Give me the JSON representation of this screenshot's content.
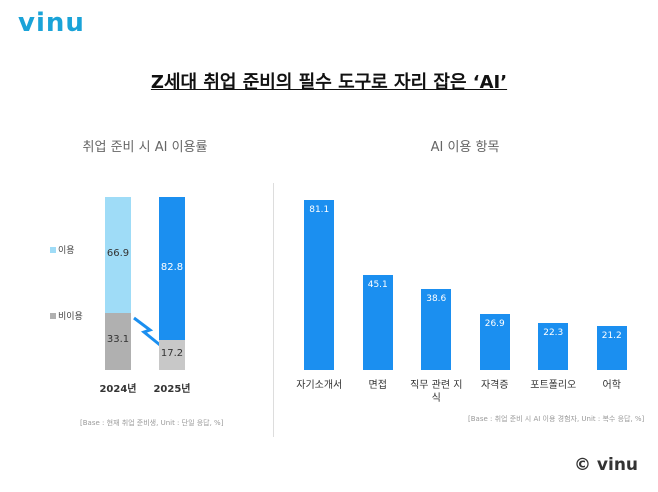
{
  "header": {
    "logo": "vinu",
    "title": "Z세대 취업 준비의 필수 도구로 자리 잡은 ‘AI’"
  },
  "footer": {
    "copyright": "© vinu"
  },
  "chart_data": [
    {
      "type": "stacked-bar",
      "title": "취업 준비 시 AI 이용률",
      "categories": [
        "2024년",
        "2025년"
      ],
      "series": [
        {
          "name": "이용",
          "color": "#9fdcf7",
          "colors": [
            "#9fdcf7",
            "#1b8ff0"
          ],
          "values": [
            66.9,
            82.8
          ]
        },
        {
          "name": "비이용",
          "color": "#b0b0b0",
          "colors": [
            "#b0b0b0",
            "#c8c8c8"
          ],
          "values": [
            33.1,
            17.2
          ]
        }
      ],
      "note": "[Base : 현재 취업 준비생, Unit : 단일 응답, %]"
    },
    {
      "type": "bar",
      "title": "AI 이용 항목",
      "categories": [
        "자기소개서",
        "면접",
        "직무 관련 지식",
        "자격증",
        "포트폴리오",
        "어학"
      ],
      "values": [
        81.1,
        45.1,
        38.6,
        26.9,
        22.3,
        21.2
      ],
      "color": "#1b8ff0",
      "note": "[Base : 취업 준비 시 AI 이용 경험자, Unit : 복수 응답, %]"
    }
  ]
}
